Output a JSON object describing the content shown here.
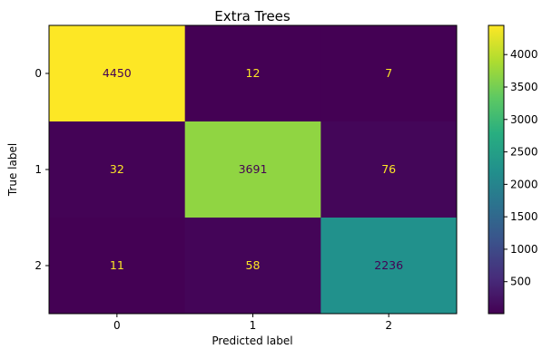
{
  "chart_data": {
    "type": "heatmap",
    "title": "Extra Trees",
    "xlabel": "Predicted label",
    "ylabel": "True label",
    "x_categories": [
      "0",
      "1",
      "2"
    ],
    "y_categories": [
      "0",
      "1",
      "2"
    ],
    "matrix": [
      [
        4450,
        12,
        7
      ],
      [
        32,
        3691,
        76
      ],
      [
        11,
        58,
        2236
      ]
    ],
    "colormap": "viridis",
    "colorbar": {
      "range": [
        7,
        4450
      ],
      "ticks": [
        "500",
        "1000",
        "1500",
        "2000",
        "2500",
        "3000",
        "3500",
        "4000"
      ]
    },
    "colors": {
      "low_text": "#fde725",
      "high_text": "#440154"
    }
  }
}
